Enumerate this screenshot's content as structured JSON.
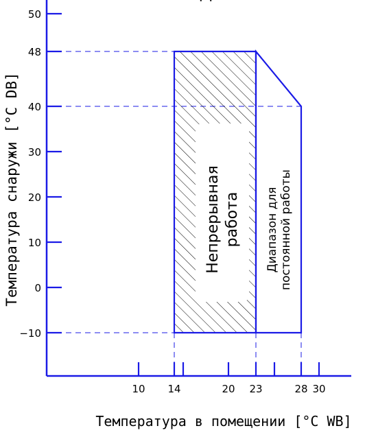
{
  "chart_data": {
    "type": "diagram",
    "title": "Д",
    "xlabel": "Температура в помещении [°C WB]",
    "ylabel": "Температура снаружи [°C DB]",
    "x_ticks": [
      10,
      14,
      15,
      20,
      23,
      25,
      28,
      30
    ],
    "x_tick_labels": [
      {
        "x": 10,
        "text": "10"
      },
      {
        "x": 14,
        "text": "14"
      },
      {
        "x": 20,
        "text": "20"
      },
      {
        "x": 23,
        "text": "23"
      },
      {
        "x": 28,
        "text": "28"
      },
      {
        "x": 30,
        "text": "30"
      }
    ],
    "y_ticks": [
      50,
      48,
      40,
      30,
      20,
      10,
      0,
      -10
    ],
    "y_tick_labels": [
      {
        "y": 50,
        "text": "50"
      },
      {
        "y": 48,
        "text": "48"
      },
      {
        "y": 40,
        "text": "40"
      },
      {
        "y": 30,
        "text": "30"
      },
      {
        "y": 20,
        "text": "20"
      },
      {
        "y": 10,
        "text": "10"
      },
      {
        "y": 0,
        "text": "0"
      },
      {
        "y": -10,
        "text": "−10"
      }
    ],
    "regions": [
      {
        "label_lines": [
          "Непрерывная",
          "работа"
        ],
        "hatched": true,
        "polygon": [
          [
            14,
            -10
          ],
          [
            14,
            48
          ],
          [
            23,
            48
          ],
          [
            23,
            -10
          ]
        ]
      },
      {
        "label_lines": [
          "Диапазон для",
          "постоянной работы"
        ],
        "hatched": false,
        "polygon": [
          [
            23,
            -10
          ],
          [
            23,
            48
          ],
          [
            28,
            40
          ],
          [
            28,
            -10
          ]
        ]
      }
    ],
    "guide_lines": {
      "horizontal": [
        48,
        40,
        -10
      ],
      "vertical": [
        14,
        23,
        28
      ]
    },
    "colors": {
      "lines": "#1a1ae6",
      "hatch": "#000000",
      "text": "#000000",
      "background": "#ffffff"
    }
  }
}
